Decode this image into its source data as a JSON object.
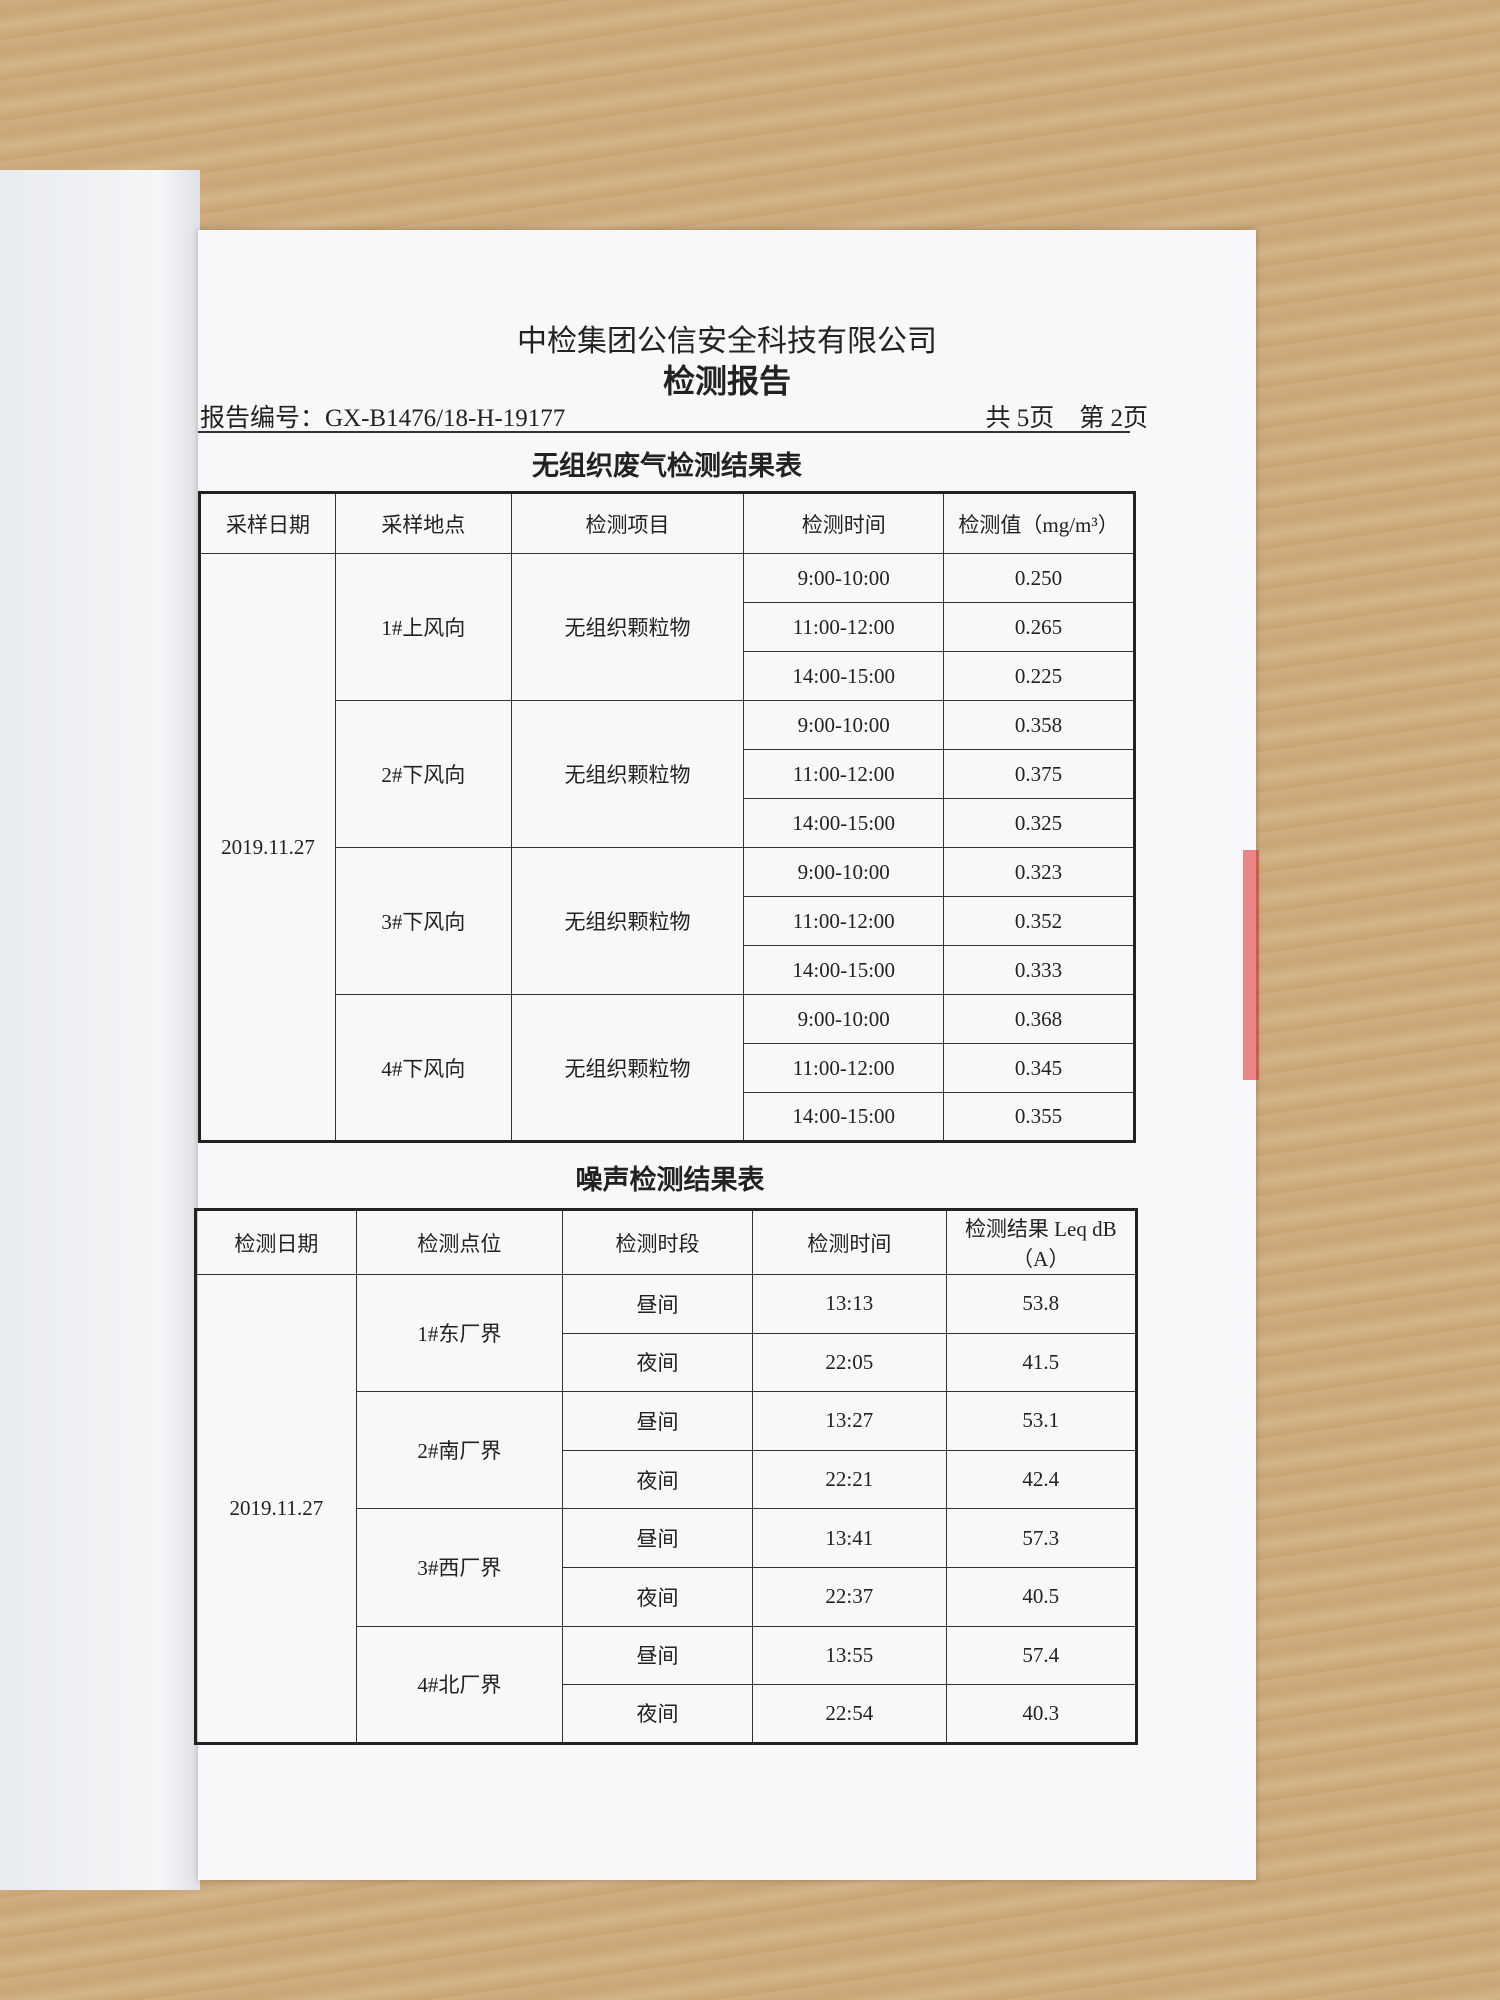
{
  "header": {
    "company": "中检集团公信安全科技有限公司",
    "title": "检测报告",
    "report_no": "报告编号：GX-B1476/18-H-19177",
    "pages": "共 5页　第 2页"
  },
  "table1": {
    "title": "无组织废气检测结果表",
    "columns": [
      "采样日期",
      "采样地点",
      "检测项目",
      "检测时间",
      "检测值（mg/m³）"
    ],
    "date": "2019.11.27",
    "groups": [
      {
        "labels": [
          "1#上风向",
          "无组织颗粒物"
        ],
        "rows": [
          [
            "9:00-10:00",
            "0.250"
          ],
          [
            "11:00-12:00",
            "0.265"
          ],
          [
            "14:00-15:00",
            "0.225"
          ]
        ]
      },
      {
        "labels": [
          "2#下风向",
          "无组织颗粒物"
        ],
        "rows": [
          [
            "9:00-10:00",
            "0.358"
          ],
          [
            "11:00-12:00",
            "0.375"
          ],
          [
            "14:00-15:00",
            "0.325"
          ]
        ]
      },
      {
        "labels": [
          "3#下风向",
          "无组织颗粒物"
        ],
        "rows": [
          [
            "9:00-10:00",
            "0.323"
          ],
          [
            "11:00-12:00",
            "0.352"
          ],
          [
            "14:00-15:00",
            "0.333"
          ]
        ]
      },
      {
        "labels": [
          "4#下风向",
          "无组织颗粒物"
        ],
        "rows": [
          [
            "9:00-10:00",
            "0.368"
          ],
          [
            "11:00-12:00",
            "0.345"
          ],
          [
            "14:00-15:00",
            "0.355"
          ]
        ]
      }
    ]
  },
  "table2": {
    "title": "噪声检测结果表",
    "columns": [
      "检测日期",
      "检测点位",
      "检测时段",
      "检测时间",
      "检测结果 Leq dB（A）"
    ],
    "date": "2019.11.27",
    "groups": [
      {
        "labels": [
          "1#东厂界"
        ],
        "rows": [
          [
            "昼间",
            "13:13",
            "53.8"
          ],
          [
            "夜间",
            "22:05",
            "41.5"
          ]
        ]
      },
      {
        "labels": [
          "2#南厂界"
        ],
        "rows": [
          [
            "昼间",
            "13:27",
            "53.1"
          ],
          [
            "夜间",
            "22:21",
            "42.4"
          ]
        ]
      },
      {
        "labels": [
          "3#西厂界"
        ],
        "rows": [
          [
            "昼间",
            "13:41",
            "57.3"
          ],
          [
            "夜间",
            "22:37",
            "40.5"
          ]
        ]
      },
      {
        "labels": [
          "4#北厂界"
        ],
        "rows": [
          [
            "昼间",
            "13:55",
            "57.4"
          ],
          [
            "夜间",
            "22:54",
            "40.3"
          ]
        ]
      }
    ]
  }
}
